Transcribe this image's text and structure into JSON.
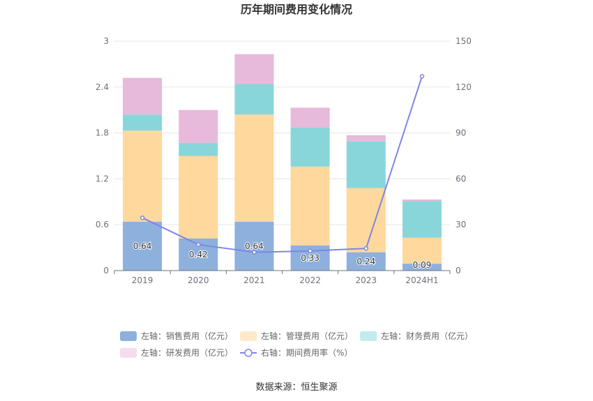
{
  "chart_data": {
    "type": "bar",
    "title": "历年期间费用变化情况",
    "source": "数据来源：恒生聚源",
    "categories": [
      "2019",
      "2020",
      "2021",
      "2022",
      "2023",
      "2024H1"
    ],
    "y_left": {
      "ticks": [
        "0",
        "0.6",
        "1.2",
        "1.8",
        "2.4",
        "3"
      ],
      "ylim": [
        0,
        3
      ]
    },
    "y_right": {
      "ticks": [
        "0",
        "30",
        "60",
        "90",
        "120",
        "150"
      ],
      "ylim": [
        0,
        150
      ]
    },
    "series": [
      {
        "name": "左轴：销售费用（亿元）",
        "kind": "bar",
        "axis": "left",
        "color": "#8eb0dd",
        "values": [
          0.64,
          0.42,
          0.64,
          0.33,
          0.24,
          0.09
        ],
        "labels": [
          "0.64",
          "0.42",
          "0.64",
          "0.33",
          "0.24",
          "0.09"
        ]
      },
      {
        "name": "左轴：管理费用（亿元）",
        "kind": "bar",
        "axis": "left",
        "color": "#fed89c",
        "values": [
          1.19,
          1.08,
          1.4,
          1.03,
          0.84,
          0.34
        ]
      },
      {
        "name": "左轴：财务费用（亿元）",
        "kind": "bar",
        "axis": "left",
        "color": "#88d6da",
        "values": [
          0.21,
          0.17,
          0.4,
          0.51,
          0.61,
          0.48
        ]
      },
      {
        "name": "左轴：研发费用（亿元）",
        "kind": "bar",
        "axis": "left",
        "color": "#e7b9da",
        "values": [
          0.48,
          0.43,
          0.39,
          0.26,
          0.08,
          0.02
        ]
      },
      {
        "name": "右轴：期间费用率（%）",
        "kind": "line",
        "axis": "right",
        "color": "#7d86e6",
        "values": [
          34.5,
          17,
          12,
          12.8,
          14.5,
          127
        ]
      }
    ],
    "grid": true,
    "legend_position": "bottom"
  }
}
